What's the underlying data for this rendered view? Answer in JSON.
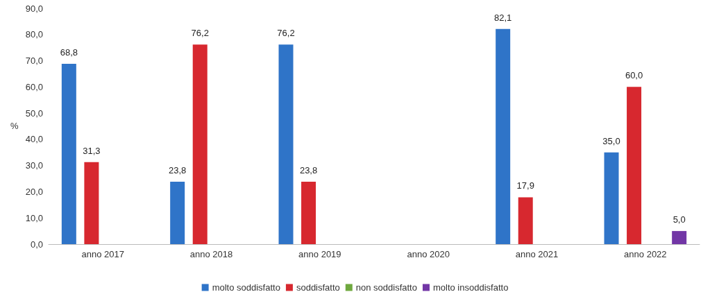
{
  "chart_data": {
    "type": "bar",
    "ylabel": "%",
    "categories": [
      "anno 2017",
      "anno 2018",
      "anno 2019",
      "anno 2020",
      "anno 2021",
      "anno 2022"
    ],
    "series": [
      {
        "name": "molto soddisfatto",
        "color": "#2f74c8",
        "values": [
          68.8,
          23.8,
          76.2,
          null,
          82.1,
          35.0
        ],
        "value_labels": [
          "68,8",
          "23,8",
          "76,2",
          null,
          "82,1",
          "35,0"
        ]
      },
      {
        "name": "soddisfatto",
        "color": "#d7282f",
        "values": [
          31.3,
          76.2,
          23.8,
          null,
          17.9,
          60.0
        ],
        "value_labels": [
          "31,3",
          "76,2",
          "23,8",
          null,
          "17,9",
          "60,0"
        ]
      },
      {
        "name": "non soddisfatto",
        "color": "#6fa83f",
        "values": [
          null,
          null,
          null,
          null,
          null,
          null
        ]
      },
      {
        "name": "molto insoddisfatto",
        "color": "#7236a6",
        "values": [
          null,
          null,
          null,
          null,
          null,
          5.0
        ],
        "value_labels": [
          null,
          null,
          null,
          null,
          null,
          "5,0"
        ]
      }
    ],
    "ylim": [
      0,
      90
    ],
    "yticks": [
      {
        "value": 0,
        "label": "0,0"
      },
      {
        "value": 10,
        "label": "10,0"
      },
      {
        "value": 20,
        "label": "20,0"
      },
      {
        "value": 30,
        "label": "30,0"
      },
      {
        "value": 40,
        "label": "40,0"
      },
      {
        "value": 50,
        "label": "50,0"
      },
      {
        "value": 60,
        "label": "60,0"
      },
      {
        "value": 70,
        "label": "70,0"
      },
      {
        "value": 80,
        "label": "80,0"
      },
      {
        "value": 90,
        "label": "90,0"
      }
    ],
    "grid": false,
    "legend": "bottom"
  }
}
